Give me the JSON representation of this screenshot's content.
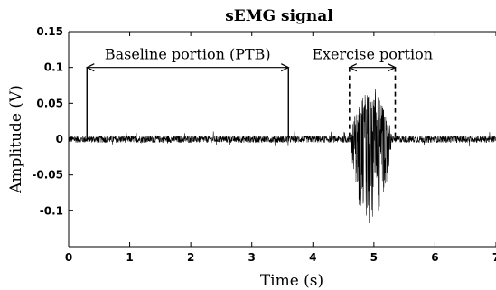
{
  "chart_data": {
    "type": "line",
    "title": "sEMG signal",
    "xlabel": "Time (s)",
    "ylabel": "Amplitude (V)",
    "xlim": [
      0,
      7
    ],
    "ylim": [
      -0.15,
      0.15
    ],
    "x_ticks": [
      "0",
      "1",
      "2",
      "3",
      "4",
      "5",
      "6",
      "7"
    ],
    "y_ticks": [
      "0.15",
      "0.1",
      "0.05",
      "0",
      "-0.05",
      "-0.1"
    ],
    "grid": false,
    "annotations": [
      {
        "label": "Baseline portion (PTB)",
        "x_start": 0.3,
        "x_end": 3.6,
        "y": 0.1,
        "marker_style": "solid"
      },
      {
        "label": "Exercise portion",
        "x_start": 4.6,
        "x_end": 5.35,
        "y": 0.1,
        "marker_style": "dashed"
      }
    ],
    "series": [
      {
        "signal_description": "baseline noise about ±0.005 V from 0 to 7 s, burst between 4.6 and 5.3 s reaching about +0.07 V and -0.13 V",
        "baseline_amplitude": 0.005,
        "burst_start": 4.6,
        "burst_end": 5.3,
        "burst_max": 0.07,
        "burst_min": -0.13,
        "color": "#000000"
      }
    ]
  }
}
